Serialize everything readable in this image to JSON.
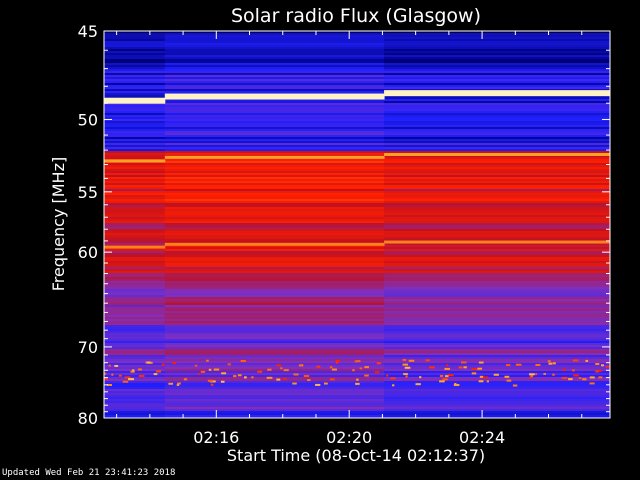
{
  "chart_data": {
    "type": "heatmap",
    "title": "Solar radio Flux (Glasgow)",
    "xlabel": "Start Time (08-Oct-14 02:12:37)",
    "ylabel": "Frequency [MHz]",
    "x_tick_labels": [
      "02:16",
      "02:20",
      "02:24"
    ],
    "x_tick_minutes": [
      16,
      20,
      24
    ],
    "x_range_minutes": [
      12.62,
      27.85
    ],
    "y_ticks": [
      45,
      50,
      55,
      60,
      70,
      80
    ],
    "y_range": [
      45,
      80
    ],
    "y_scale": "reciprocal",
    "colormap": [
      "#000010",
      "#000080",
      "#2020ff",
      "#8030c0",
      "#c01020",
      "#ff2000",
      "#ffa020",
      "#ffffe0"
    ],
    "bright_bands_mhz": [
      48.6,
      52.5,
      59.3
    ],
    "segment_breaks_minutes": [
      14.45,
      21.05
    ]
  },
  "footer": "Updated Wed Feb 21 23:41:23 2018"
}
